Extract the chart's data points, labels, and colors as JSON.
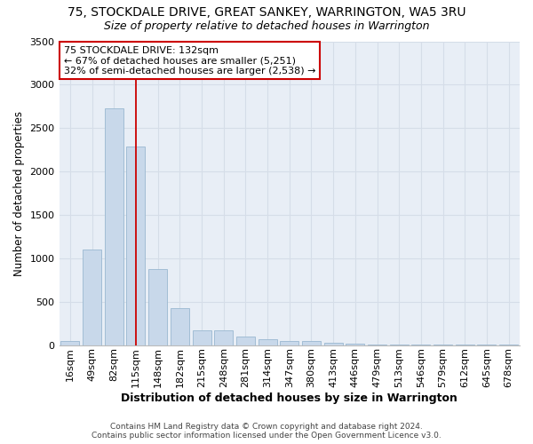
{
  "title1": "75, STOCKDALE DRIVE, GREAT SANKEY, WARRINGTON, WA5 3RU",
  "title2": "Size of property relative to detached houses in Warrington",
  "xlabel": "Distribution of detached houses by size in Warrington",
  "ylabel": "Number of detached properties",
  "categories": [
    "16sqm",
    "49sqm",
    "82sqm",
    "115sqm",
    "148sqm",
    "182sqm",
    "215sqm",
    "248sqm",
    "281sqm",
    "314sqm",
    "347sqm",
    "380sqm",
    "413sqm",
    "446sqm",
    "479sqm",
    "513sqm",
    "546sqm",
    "579sqm",
    "612sqm",
    "645sqm",
    "678sqm"
  ],
  "values": [
    50,
    1100,
    2730,
    2290,
    875,
    430,
    170,
    165,
    95,
    65,
    50,
    45,
    30,
    20,
    10,
    5,
    5,
    3,
    3,
    2,
    2
  ],
  "bar_color": "#c8d8ea",
  "bar_edge_color": "#9ab8d0",
  "grid_color": "#d5dde8",
  "background_color": "#e8eef6",
  "annotation_box_text": "75 STOCKDALE DRIVE: 132sqm\n← 67% of detached houses are smaller (5,251)\n32% of semi-detached houses are larger (2,538) →",
  "red_line_color": "#cc0000",
  "annotation_box_color": "#ffffff",
  "annotation_box_edge_color": "#cc0000",
  "footer_text": "Contains HM Land Registry data © Crown copyright and database right 2024.\nContains public sector information licensed under the Open Government Licence v3.0.",
  "ylim": [
    0,
    3500
  ],
  "title1_fontsize": 10,
  "title2_fontsize": 9,
  "xlabel_fontsize": 9,
  "ylabel_fontsize": 8.5,
  "tick_fontsize": 8,
  "footer_fontsize": 6.5,
  "annotation_fontsize": 8
}
